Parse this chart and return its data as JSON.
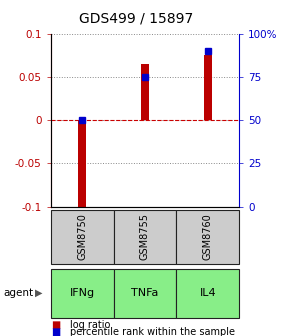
{
  "title": "GDS499 / 15897",
  "categories": [
    "IFNg",
    "TNFa",
    "IL4"
  ],
  "sample_ids": [
    "GSM8750",
    "GSM8755",
    "GSM8760"
  ],
  "log_ratios": [
    -0.102,
    0.065,
    0.075
  ],
  "percentile_ranks": [
    50,
    75,
    90
  ],
  "ylim_left": [
    -0.1,
    0.1
  ],
  "ylim_right": [
    0,
    100
  ],
  "left_ticks": [
    -0.1,
    -0.05,
    0,
    0.05,
    0.1
  ],
  "right_ticks": [
    0,
    25,
    50,
    75,
    100
  ],
  "right_tick_labels": [
    "0",
    "25",
    "50",
    "75",
    "100%"
  ],
  "bar_color": "#bb0000",
  "dot_color": "#0000cc",
  "zero_line_color": "#cc0000",
  "grid_color": "#888888",
  "bg_color": "#ffffff",
  "plot_bg": "#ffffff",
  "cell_bg_sample": "#cccccc",
  "cell_bg_agent": "#88ee88",
  "cell_border": "#222222",
  "agent_label": "agent",
  "legend_bar": "log ratio",
  "legend_dot": "percentile rank within the sample",
  "title_fontsize": 10,
  "axis_fontsize": 7.5,
  "label_fontsize": 8,
  "legend_fontsize": 7,
  "bar_width": 0.12
}
